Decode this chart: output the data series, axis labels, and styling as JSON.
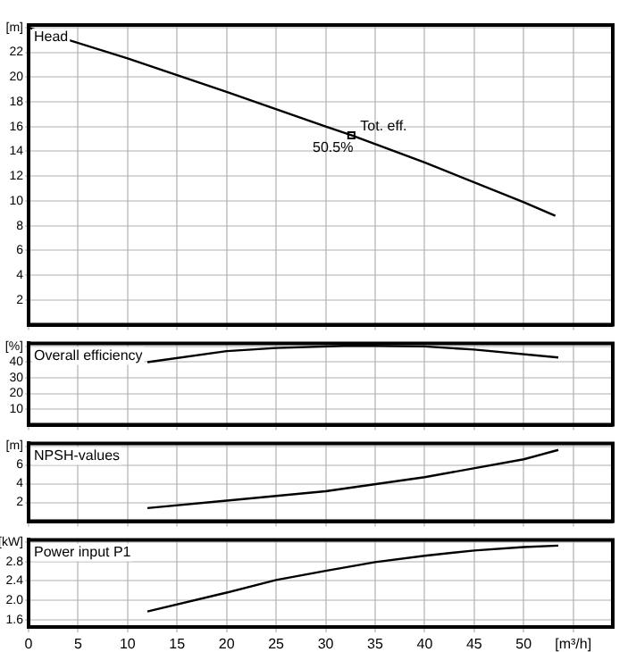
{
  "chart_data": [
    {
      "type": "line",
      "title": "Head",
      "xlim": [
        0,
        59
      ],
      "xticks": [
        0,
        5,
        10,
        15,
        20,
        25,
        30,
        35,
        40,
        45,
        50,
        55
      ],
      "ylim": [
        0,
        24.2
      ],
      "yticks": [
        2,
        4,
        6,
        8,
        10,
        12,
        14,
        16,
        18,
        20,
        22,
        {
          "value": 24,
          "label": "[m]"
        }
      ],
      "tick_labels": "y",
      "grid": true,
      "series": [
        {
          "type": "line",
          "color": "#000000",
          "x": [
            0,
            10,
            20,
            30,
            32.6,
            40,
            50,
            53.2
          ],
          "values": [
            24,
            21.5,
            18.8,
            16,
            15.3,
            13.1,
            9.9,
            8.8
          ]
        },
        {
          "type": "scatter",
          "marker": "square",
          "color": "#000000",
          "x": [
            32.6
          ],
          "values": [
            15.3
          ]
        }
      ],
      "annotations": [
        {
          "text": "Tot. eff.",
          "x": 32.6,
          "y": 15.3
        },
        {
          "text": "50.5%",
          "x": 32.6,
          "y": 15.3
        }
      ]
    },
    {
      "type": "line",
      "title": "Overall efficiency",
      "xlim": [
        0,
        59
      ],
      "xticks": [
        0,
        5,
        10,
        15,
        20,
        25,
        30,
        35,
        40,
        45,
        50,
        55
      ],
      "ylim": [
        0,
        52
      ],
      "yticks": [
        10,
        20,
        30,
        40,
        {
          "value": 50,
          "label": "[%]"
        }
      ],
      "tick_labels": "y",
      "grid": true,
      "series": [
        {
          "color": "#000000",
          "x": [
            12,
            20,
            25,
            32.6,
            40,
            45,
            53.5
          ],
          "values": [
            40,
            47,
            49,
            50.5,
            50,
            48,
            43
          ]
        }
      ]
    },
    {
      "type": "line",
      "title": "NPSH-values",
      "xlim": [
        0,
        59
      ],
      "xticks": [
        0,
        5,
        10,
        15,
        20,
        25,
        30,
        35,
        40,
        45,
        50,
        55
      ],
      "ylim": [
        0,
        8.3
      ],
      "yticks": [
        2,
        4,
        6,
        {
          "value": 8,
          "label": "[m]"
        }
      ],
      "tick_labels": "y",
      "grid": true,
      "series": [
        {
          "color": "#000000",
          "x": [
            12,
            20,
            30,
            40,
            50,
            53.5
          ],
          "values": [
            1.4,
            2.2,
            3.2,
            4.7,
            6.6,
            7.6
          ]
        }
      ]
    },
    {
      "type": "line",
      "title": "Power input P1",
      "xlim": [
        0,
        59
      ],
      "xticks": [
        0,
        5,
        10,
        15,
        20,
        25,
        30,
        35,
        40,
        45,
        50,
        {
          "value": 55,
          "label": "[m³/h]"
        }
      ],
      "ylim": [
        1.45,
        3.25
      ],
      "yticks": [
        1.6,
        {
          "value": 2,
          "label": "2.0"
        },
        2.4,
        2.8,
        {
          "value": 3.2,
          "label": "[kW]"
        }
      ],
      "grid": true,
      "series": [
        {
          "color": "#000000",
          "x": [
            12,
            20,
            25,
            30,
            35,
            40,
            45,
            50,
            53.5
          ],
          "values": [
            1.77,
            2.16,
            2.42,
            2.61,
            2.79,
            2.92,
            3.03,
            3.1,
            3.13
          ]
        }
      ]
    }
  ]
}
